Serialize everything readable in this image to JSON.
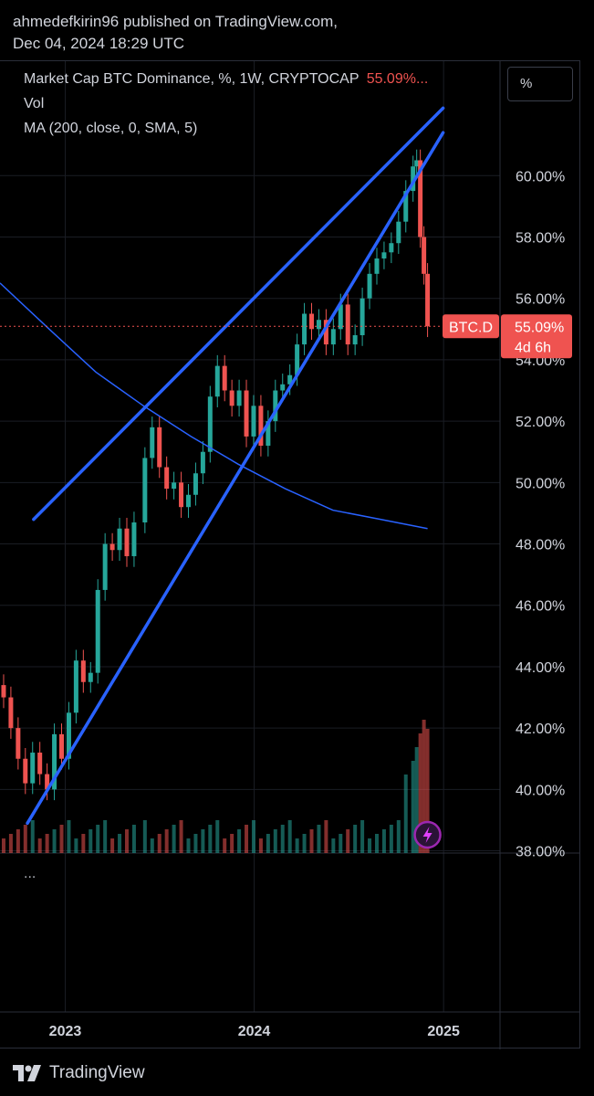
{
  "header": {
    "line1": "ahmedefkirin96 published on TradingView.com,",
    "line2": "Dec 04, 2024 18:29 UTC"
  },
  "legend": {
    "title": "Market Cap BTC Dominance, %, 1W, CRYPTOCAP",
    "value": "55.09%...",
    "vol": "Vol",
    "ma": "MA (200, close, 0, SMA, 5)"
  },
  "scale_button": "%",
  "pane_menu": "...",
  "price_tag": {
    "symbol": "BTC.D",
    "value": "55.09%",
    "countdown": "4d 6h"
  },
  "footer": {
    "brand": "TradingView"
  },
  "colors": {
    "background": "#000000",
    "up": "#26a69a",
    "down": "#ef5350",
    "trendline": "#2962ff",
    "ma": "#2962ff",
    "price_line": "#ef5350",
    "grid": "#1a1d24"
  },
  "chart_data": {
    "type": "candlestick",
    "symbol": "BTC.D",
    "interval": "1W",
    "y_ticks": [
      "60.00%",
      "58.00%",
      "56.00%",
      "54.00%",
      "52.00%",
      "50.00%",
      "48.00%",
      "46.00%",
      "44.00%",
      "42.00%",
      "40.00%",
      "38.00%"
    ],
    "y_tick_values": [
      60,
      58,
      56,
      54,
      52,
      50,
      48,
      46,
      44,
      42,
      40,
      38
    ],
    "ylim": [
      37.6,
      62.3
    ],
    "x_ticks": [
      {
        "label": "2023",
        "date": "2023-01-01"
      },
      {
        "label": "2024",
        "date": "2024-01-01"
      },
      {
        "label": "2025",
        "date": "2025-01-01"
      }
    ],
    "xlim": [
      "2022-08-28",
      "2025-04-20"
    ],
    "last_price": 55.09,
    "series": [
      {
        "type": "candles",
        "name": "BTC.D",
        "closes": [
          {
            "date": "2022-09-04",
            "close": 43.0
          },
          {
            "date": "2022-09-18",
            "close": 42.0
          },
          {
            "date": "2022-10-02",
            "close": 41.0
          },
          {
            "date": "2022-10-16",
            "close": 40.2
          },
          {
            "date": "2022-10-30",
            "close": 41.2
          },
          {
            "date": "2022-11-13",
            "close": 40.5
          },
          {
            "date": "2022-11-27",
            "close": 40.0
          },
          {
            "date": "2022-12-11",
            "close": 41.8
          },
          {
            "date": "2022-12-25",
            "close": 41.0
          },
          {
            "date": "2023-01-08",
            "close": 42.5
          },
          {
            "date": "2023-01-22",
            "close": 44.2
          },
          {
            "date": "2023-02-05",
            "close": 43.5
          },
          {
            "date": "2023-02-19",
            "close": 43.8
          },
          {
            "date": "2023-03-05",
            "close": 46.5
          },
          {
            "date": "2023-03-19",
            "close": 48.0
          },
          {
            "date": "2023-04-02",
            "close": 47.8
          },
          {
            "date": "2023-04-16",
            "close": 48.5
          },
          {
            "date": "2023-04-30",
            "close": 47.6
          },
          {
            "date": "2023-05-14",
            "close": 48.7
          },
          {
            "date": "2023-06-04",
            "close": 50.8
          },
          {
            "date": "2023-06-18",
            "close": 51.8
          },
          {
            "date": "2023-07-02",
            "close": 50.5
          },
          {
            "date": "2023-07-16",
            "close": 49.8
          },
          {
            "date": "2023-07-30",
            "close": 50.0
          },
          {
            "date": "2023-08-13",
            "close": 49.2
          },
          {
            "date": "2023-08-27",
            "close": 49.6
          },
          {
            "date": "2023-09-10",
            "close": 50.3
          },
          {
            "date": "2023-09-24",
            "close": 51.0
          },
          {
            "date": "2023-10-08",
            "close": 52.8
          },
          {
            "date": "2023-10-22",
            "close": 53.8
          },
          {
            "date": "2023-11-05",
            "close": 53.0
          },
          {
            "date": "2023-11-19",
            "close": 52.5
          },
          {
            "date": "2023-12-03",
            "close": 53.0
          },
          {
            "date": "2023-12-17",
            "close": 51.5
          },
          {
            "date": "2023-12-31",
            "close": 52.5
          },
          {
            "date": "2024-01-14",
            "close": 51.2
          },
          {
            "date": "2024-01-28",
            "close": 52.0
          },
          {
            "date": "2024-02-11",
            "close": 53.0
          },
          {
            "date": "2024-02-25",
            "close": 53.2
          },
          {
            "date": "2024-03-10",
            "close": 53.5
          },
          {
            "date": "2024-03-24",
            "close": 54.5
          },
          {
            "date": "2024-04-07",
            "close": 55.5
          },
          {
            "date": "2024-04-21",
            "close": 55.0
          },
          {
            "date": "2024-05-05",
            "close": 55.3
          },
          {
            "date": "2024-05-19",
            "close": 54.5
          },
          {
            "date": "2024-06-02",
            "close": 55.0
          },
          {
            "date": "2024-06-16",
            "close": 55.8
          },
          {
            "date": "2024-06-30",
            "close": 54.5
          },
          {
            "date": "2024-07-14",
            "close": 54.8
          },
          {
            "date": "2024-07-28",
            "close": 56.0
          },
          {
            "date": "2024-08-11",
            "close": 56.8
          },
          {
            "date": "2024-08-25",
            "close": 57.3
          },
          {
            "date": "2024-09-08",
            "close": 57.5
          },
          {
            "date": "2024-09-22",
            "close": 57.8
          },
          {
            "date": "2024-10-06",
            "close": 58.5
          },
          {
            "date": "2024-10-20",
            "close": 59.5
          },
          {
            "date": "2024-11-03",
            "close": 60.3
          },
          {
            "date": "2024-11-10",
            "close": 60.5
          },
          {
            "date": "2024-11-17",
            "close": 58.0
          },
          {
            "date": "2024-11-24",
            "close": 56.8
          },
          {
            "date": "2024-12-01",
            "close": 55.09
          }
        ]
      },
      {
        "type": "line",
        "name": "MA",
        "points": [
          {
            "date": "2022-08-28",
            "value": 56.5
          },
          {
            "date": "2022-12-01",
            "value": 55.0
          },
          {
            "date": "2023-03-01",
            "value": 53.6
          },
          {
            "date": "2023-06-01",
            "value": 52.5
          },
          {
            "date": "2023-09-01",
            "value": 51.5
          },
          {
            "date": "2023-12-01",
            "value": 50.6
          },
          {
            "date": "2024-03-01",
            "value": 49.8
          },
          {
            "date": "2024-06-01",
            "value": 49.1
          },
          {
            "date": "2024-09-01",
            "value": 48.8
          },
          {
            "date": "2024-12-01",
            "value": 48.5
          }
        ]
      },
      {
        "type": "trendline",
        "name": "upper",
        "points": [
          {
            "date": "2022-11-01",
            "value": 48.8
          },
          {
            "date": "2024-12-31",
            "value": 62.2
          }
        ]
      },
      {
        "type": "trendline",
        "name": "lower",
        "points": [
          {
            "date": "2022-10-20",
            "value": 38.9
          },
          {
            "date": "2024-12-31",
            "value": 61.4
          }
        ]
      }
    ]
  }
}
